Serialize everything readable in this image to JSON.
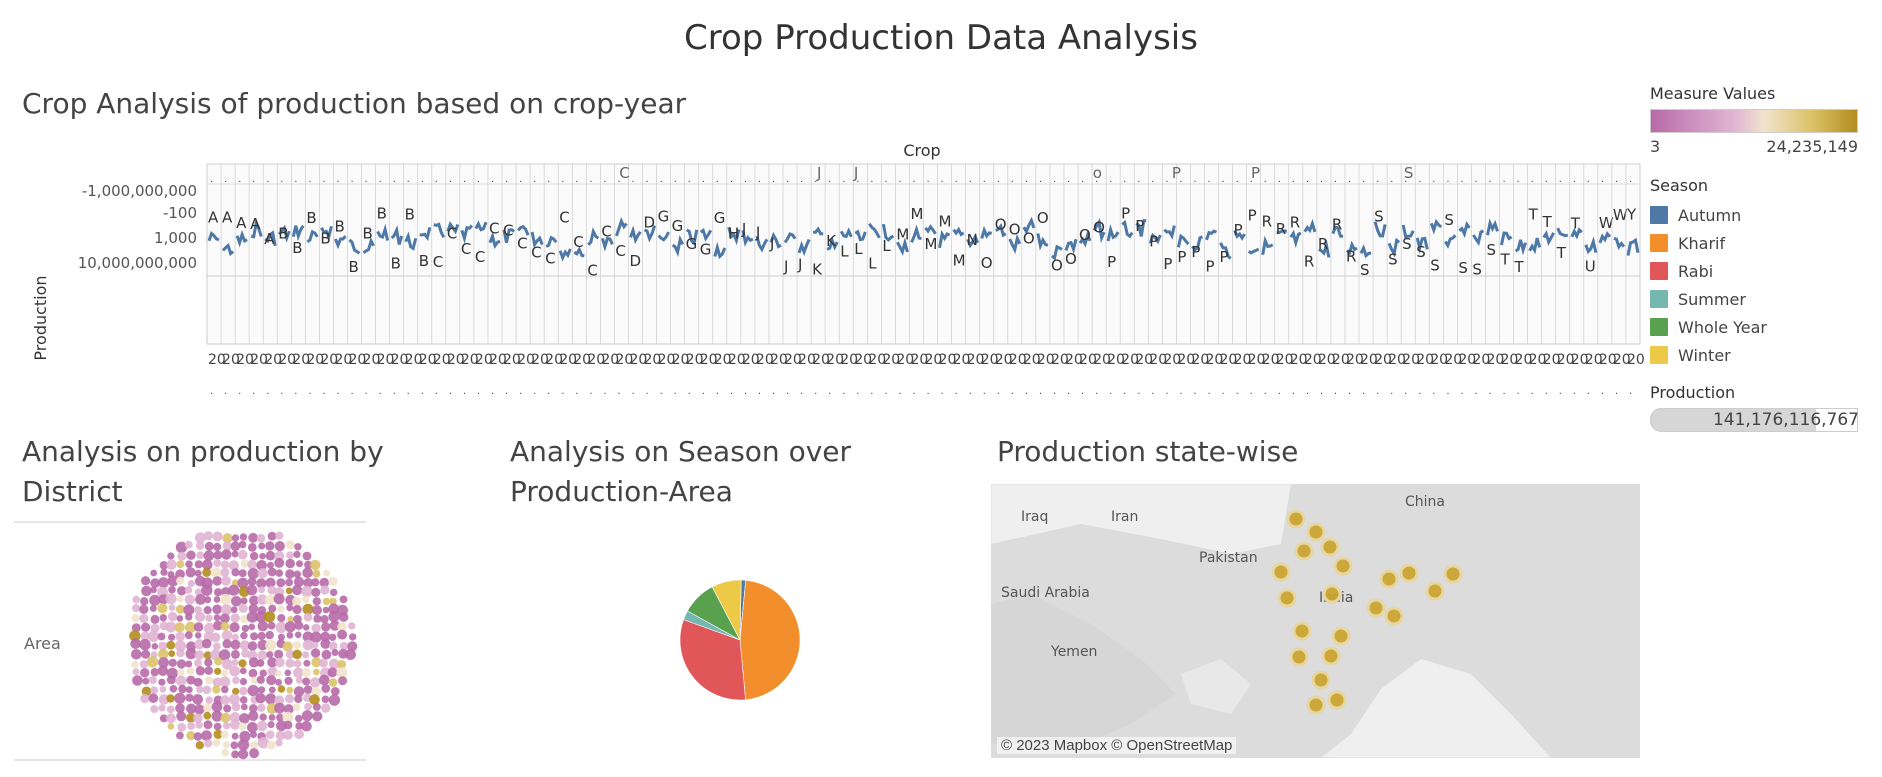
{
  "title": "Crop Production Data Analysis",
  "sections": {
    "crop_year": "Crop Analysis of production based on crop-year",
    "district": "Analysis on production by District",
    "season": "Analysis on Season over Production-Area",
    "state": "Production state-wise"
  },
  "legend": {
    "measure_title": "Measure Values",
    "measure_min": "3",
    "measure_max": "24,235,149",
    "season_title": "Season",
    "seasons": [
      {
        "label": "Autumn",
        "color": "#4e79a7"
      },
      {
        "label": "Kharif",
        "color": "#f28e2b"
      },
      {
        "label": "Rabi",
        "color": "#e15759"
      },
      {
        "label": "Summer",
        "color": "#76b7b2"
      },
      {
        "label": "Whole Year",
        "color": "#59a14f"
      },
      {
        "label": "Winter",
        "color": "#edc948"
      }
    ],
    "production_title": "Production",
    "production_value": "141,176,116,767"
  },
  "chart_data": [
    {
      "type": "line",
      "header": "Crop",
      "ylabel": "Production",
      "y_ticks": [
        "-1,000,000,000",
        "-100",
        "1,000",
        "10,000,000,000"
      ],
      "top_panel_letters": [
        "C",
        "J",
        "J",
        "o",
        "P",
        "P",
        "S"
      ],
      "panel_letters": [
        "A",
        "A",
        "A",
        "A",
        "A",
        "B",
        "B",
        "B",
        "B",
        "B",
        "B",
        "B",
        "B",
        "B",
        "B",
        "B",
        "C",
        "C",
        "C",
        "C",
        "C",
        "C",
        "C",
        "C",
        "C",
        "C",
        "C",
        "C",
        "C",
        "C",
        "D",
        "D",
        "G",
        "G",
        "G",
        "G",
        "G",
        "H",
        "J",
        "J",
        "J",
        "J",
        "J",
        "K",
        "K",
        "L",
        "L",
        "L",
        "L",
        "M",
        "M",
        "M",
        "M",
        "M",
        "N",
        "O",
        "O",
        "O",
        "O",
        "O",
        "O",
        "O",
        "O",
        "O",
        "P",
        "P",
        "P",
        "P",
        "P",
        "P",
        "P",
        "P",
        "P",
        "P",
        "P",
        "R",
        "R",
        "R",
        "R",
        "R",
        "R",
        "R",
        "S",
        "S",
        "S",
        "S",
        "S",
        "S",
        "S",
        "S",
        "S",
        "S",
        "T",
        "T",
        "T",
        "T",
        "T",
        "T",
        "U",
        "W",
        "W",
        "Y"
      ],
      "x_tick_label": "20",
      "color": "#4e79a7"
    },
    {
      "type": "bubble",
      "row_label": "Area",
      "color_scale": [
        "#b86aa8",
        "#e0b4d3",
        "#f1e3cc",
        "#dcc268",
        "#b38d1d"
      ]
    },
    {
      "type": "pie",
      "slices": [
        {
          "season": "Autumn",
          "value": 1.2,
          "color": "#4e79a7"
        },
        {
          "season": "Kharif",
          "value": 47.0,
          "color": "#f28e2b"
        },
        {
          "season": "Rabi",
          "value": 32.0,
          "color": "#e15759"
        },
        {
          "season": "Summer",
          "value": 2.5,
          "color": "#76b7b2"
        },
        {
          "season": "Whole Year",
          "value": 9.3,
          "color": "#59a14f"
        },
        {
          "season": "Winter",
          "value": 8.0,
          "color": "#edc948"
        }
      ]
    },
    {
      "type": "map",
      "labels": [
        "Iraq",
        "Iran",
        "Pakistan",
        "Saudi Arabia",
        "China",
        "Yemen",
        "India"
      ],
      "credit": "© 2023 Mapbox © OpenStreetMap"
    }
  ]
}
